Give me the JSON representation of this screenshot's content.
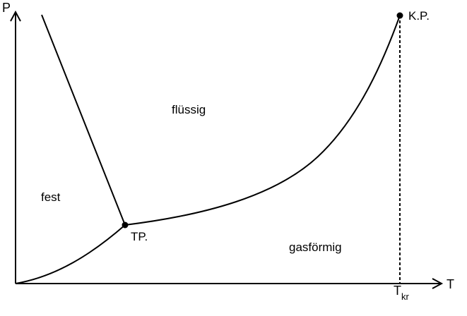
{
  "axes": {
    "y_label": "P",
    "x_label": "T"
  },
  "regions": {
    "solid": "fest",
    "liquid": "flüssig",
    "gas": "gasförmig"
  },
  "points": {
    "triple": "TP.",
    "critical": "K.P."
  },
  "critical_temperature": {
    "symbol": "T",
    "subscript": "kr"
  },
  "colors": {
    "line": "#000000",
    "background": "#ffffff"
  }
}
